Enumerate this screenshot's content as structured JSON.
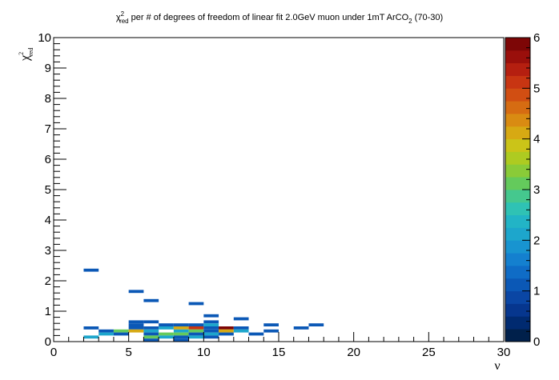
{
  "chart_data": {
    "type": "heatmap",
    "title": {
      "prefix": "χ",
      "sup": "2",
      "sub": "red",
      "main": " per # of degrees of freedom of linear fit 2.0GeV muon under 1mT ArCO",
      "formula_sub": "2",
      "suffix": " (70-30)"
    },
    "xlabel": "ν",
    "ylabel": {
      "symbol": "χ",
      "sup": "2",
      "sub": "red"
    },
    "xlim": [
      0,
      30
    ],
    "ylim": [
      0,
      10
    ],
    "zlim": [
      0,
      6
    ],
    "x_ticks": [
      "0",
      "5",
      "10",
      "15",
      "20",
      "25",
      "30"
    ],
    "y_ticks": [
      "0",
      "1",
      "2",
      "3",
      "4",
      "5",
      "6",
      "7",
      "8",
      "9",
      "10"
    ],
    "z_ticks": [
      "0",
      "1",
      "2",
      "3",
      "4",
      "5",
      "6"
    ],
    "x_bin_width": 1,
    "y_bin_width": 0.1,
    "palette": [
      "#00204b",
      "#002a70",
      "#06368e",
      "#0a46a4",
      "#0b58b6",
      "#0f6cc6",
      "#1480cf",
      "#1894d0",
      "#1da6cc",
      "#22b4c6",
      "#2fc2b4",
      "#45c88e",
      "#64ca5c",
      "#8acb38",
      "#aecb21",
      "#cbc418",
      "#d7a913",
      "#d98b12",
      "#d66c12",
      "#d14e12",
      "#c83512",
      "#b51f10",
      "#9a0f0b",
      "#7d0606"
    ],
    "cells": [
      {
        "x": 2,
        "y": 0.4,
        "z": 1
      },
      {
        "x": 2,
        "y": 0.1,
        "z": 2
      },
      {
        "x": 2,
        "y": 2.3,
        "z": 1
      },
      {
        "x": 3,
        "y": 0.3,
        "z": 1
      },
      {
        "x": 3,
        "y": 0.2,
        "z": 2
      },
      {
        "x": 4,
        "y": 0.3,
        "z": 3
      },
      {
        "x": 4,
        "y": 0.2,
        "z": 1
      },
      {
        "x": 5,
        "y": 0.6,
        "z": 1
      },
      {
        "x": 5,
        "y": 0.5,
        "z": 1
      },
      {
        "x": 5,
        "y": 0.4,
        "z": 1
      },
      {
        "x": 5,
        "y": 0.3,
        "z": 4
      },
      {
        "x": 5,
        "y": 1.6,
        "z": 1
      },
      {
        "x": 6,
        "y": 0.6,
        "z": 1
      },
      {
        "x": 6,
        "y": 0.4,
        "z": 1
      },
      {
        "x": 6,
        "y": 0.3,
        "z": 2
      },
      {
        "x": 6,
        "y": 0.2,
        "z": 1
      },
      {
        "x": 6,
        "y": 0.1,
        "z": 3
      },
      {
        "x": 6,
        "y": 0.0,
        "z": 1
      },
      {
        "x": 6,
        "y": 1.3,
        "z": 1
      },
      {
        "x": 7,
        "y": 0.5,
        "z": 1
      },
      {
        "x": 7,
        "y": 0.4,
        "z": 2
      },
      {
        "x": 7,
        "y": 0.2,
        "z": 3
      },
      {
        "x": 7,
        "y": 0.1,
        "z": 2
      },
      {
        "x": 8,
        "y": 0.5,
        "z": 1
      },
      {
        "x": 8,
        "y": 0.4,
        "z": 4
      },
      {
        "x": 8,
        "y": 0.3,
        "z": 2
      },
      {
        "x": 8,
        "y": 0.2,
        "z": 3
      },
      {
        "x": 8,
        "y": 0.1,
        "z": 1
      },
      {
        "x": 8,
        "y": 0.0,
        "z": 1
      },
      {
        "x": 9,
        "y": 0.5,
        "z": 1
      },
      {
        "x": 9,
        "y": 0.4,
        "z": 5
      },
      {
        "x": 9,
        "y": 0.3,
        "z": 3
      },
      {
        "x": 9,
        "y": 0.2,
        "z": 1
      },
      {
        "x": 9,
        "y": 0.1,
        "z": 2
      },
      {
        "x": 9,
        "y": 1.2,
        "z": 1
      },
      {
        "x": 10,
        "y": 0.6,
        "z": 1
      },
      {
        "x": 10,
        "y": 0.5,
        "z": 2
      },
      {
        "x": 10,
        "y": 0.4,
        "z": 1
      },
      {
        "x": 10,
        "y": 0.3,
        "z": 1
      },
      {
        "x": 10,
        "y": 0.2,
        "z": 2
      },
      {
        "x": 10,
        "y": 0.1,
        "z": 1
      },
      {
        "x": 10,
        "y": 0.8,
        "z": 1
      },
      {
        "x": 11,
        "y": 0.4,
        "z": 6
      },
      {
        "x": 11,
        "y": 0.3,
        "z": 4
      },
      {
        "x": 11,
        "y": 0.2,
        "z": 1
      },
      {
        "x": 12,
        "y": 0.7,
        "z": 1
      },
      {
        "x": 12,
        "y": 0.4,
        "z": 1
      },
      {
        "x": 12,
        "y": 0.3,
        "z": 2
      },
      {
        "x": 13,
        "y": 0.2,
        "z": 1
      },
      {
        "x": 14,
        "y": 0.5,
        "z": 1
      },
      {
        "x": 14,
        "y": 0.3,
        "z": 1
      },
      {
        "x": 16,
        "y": 0.4,
        "z": 1
      },
      {
        "x": 17,
        "y": 0.5,
        "z": 1
      }
    ],
    "grid": false,
    "colorbar": "right"
  }
}
